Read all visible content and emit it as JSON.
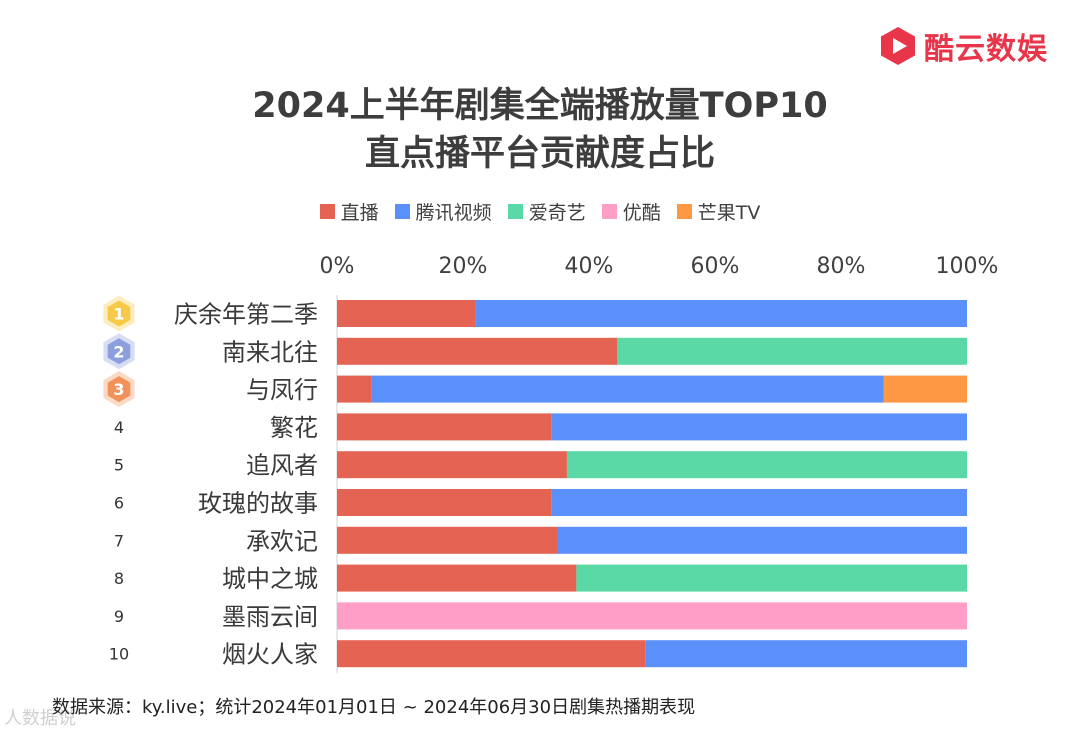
{
  "brand": {
    "name": "酷云数娱",
    "icon": "play-logo-icon",
    "color": "#e8354a"
  },
  "chart_data": {
    "type": "bar",
    "orientation": "horizontal",
    "stacked": true,
    "title": [
      "2024上半年剧集全端播放量TOP10",
      "直点播平台贡献度占比"
    ],
    "xlim": [
      0,
      100
    ],
    "xticks": [
      "0%",
      "20%",
      "40%",
      "60%",
      "80%",
      "100%"
    ],
    "legend_position": "top-center",
    "categories": [
      "庆余年第二季",
      "南来北往",
      "与凤行",
      "繁花",
      "追风者",
      "玫瑰的故事",
      "承欢记",
      "城中之城",
      "墨雨云间",
      "烟火人家"
    ],
    "ranks": [
      "1",
      "2",
      "3",
      "4",
      "5",
      "6",
      "7",
      "8",
      "9",
      "10"
    ],
    "series": [
      {
        "name": "直播",
        "color": "#e56353",
        "values": [
          22,
          44.5,
          5.5,
          34,
          36.5,
          34,
          35,
          38,
          0,
          49
        ]
      },
      {
        "name": "腾讯视频",
        "color": "#5b8ff9",
        "values": [
          78,
          0,
          81.3,
          66,
          0,
          66,
          65,
          0,
          0,
          51
        ]
      },
      {
        "name": "爱奇艺",
        "color": "#5ad8a6",
        "values": [
          0,
          55.5,
          0,
          0,
          63.5,
          0,
          0,
          62,
          0,
          0
        ]
      },
      {
        "name": "优酷",
        "color": "#ff9ec6",
        "values": [
          0,
          0,
          0,
          0,
          0,
          0,
          0,
          0,
          100,
          0
        ]
      },
      {
        "name": "芒果TV",
        "color": "#ff9845",
        "values": [
          0,
          0,
          13.2,
          0,
          0,
          0,
          0,
          0,
          0,
          0
        ]
      }
    ],
    "medal_colors": [
      "#f7c948",
      "#8c9fdc",
      "#f0925a"
    ]
  },
  "footer": {
    "source": "数据来源：ky.live；统计2024年01月01日 ~ 2024年06月30日剧集热播期表现"
  },
  "watermark": {
    "text": "人数据说"
  }
}
